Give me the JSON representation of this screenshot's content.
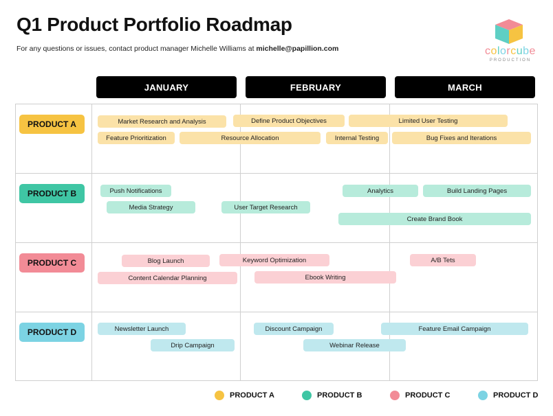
{
  "header": {
    "title": "Q1 Product Portfolio Roadmap",
    "subtitle_prefix": "For any questions or issues, contact product manager Michelle Williams at ",
    "contact_email": "michelle@papillion.com"
  },
  "logo": {
    "wordmark": "colorcube",
    "tagline": "PRODUCTION",
    "colors": {
      "top": "#f28b96",
      "left": "#5ecfc4",
      "right": "#f6c342"
    }
  },
  "months": [
    "JANUARY",
    "FEBRUARY",
    "MARCH"
  ],
  "products": [
    {
      "label": "PRODUCT A",
      "color": "#f6c342",
      "tasks": [
        "Market Research and Analysis",
        "Define Product Objectives",
        "Limited User Testing",
        "Feature Prioritization",
        "Resource Allocation",
        "Internal Testing",
        "Bug Fixes and Iterations"
      ]
    },
    {
      "label": "PRODUCT B",
      "color": "#3fc6a4",
      "tasks": [
        "Push Notifications",
        "Analytics",
        "Build Landing Pages",
        "Media Strategy",
        "User Target Research",
        "Create Brand Book"
      ]
    },
    {
      "label": "PRODUCT C",
      "color": "#f28b96",
      "tasks": [
        "Blog Launch",
        "Keyword Optimization",
        "A/B Tets",
        "Content Calendar Planning",
        "Ebook Writing"
      ]
    },
    {
      "label": "PRODUCT D",
      "color": "#7cd3e3",
      "tasks": [
        "Newsletter Launch",
        "Discount Campaign",
        "Feature Email Campaign",
        "Drip Campaign",
        "Webinar Release"
      ]
    }
  ],
  "legend": [
    {
      "label": "PRODUCT A",
      "color": "#f6c342"
    },
    {
      "label": "PRODUCT B",
      "color": "#3fc6a4"
    },
    {
      "label": "PRODUCT C",
      "color": "#f28b96"
    },
    {
      "label": "PRODUCT D",
      "color": "#7cd3e3"
    }
  ]
}
